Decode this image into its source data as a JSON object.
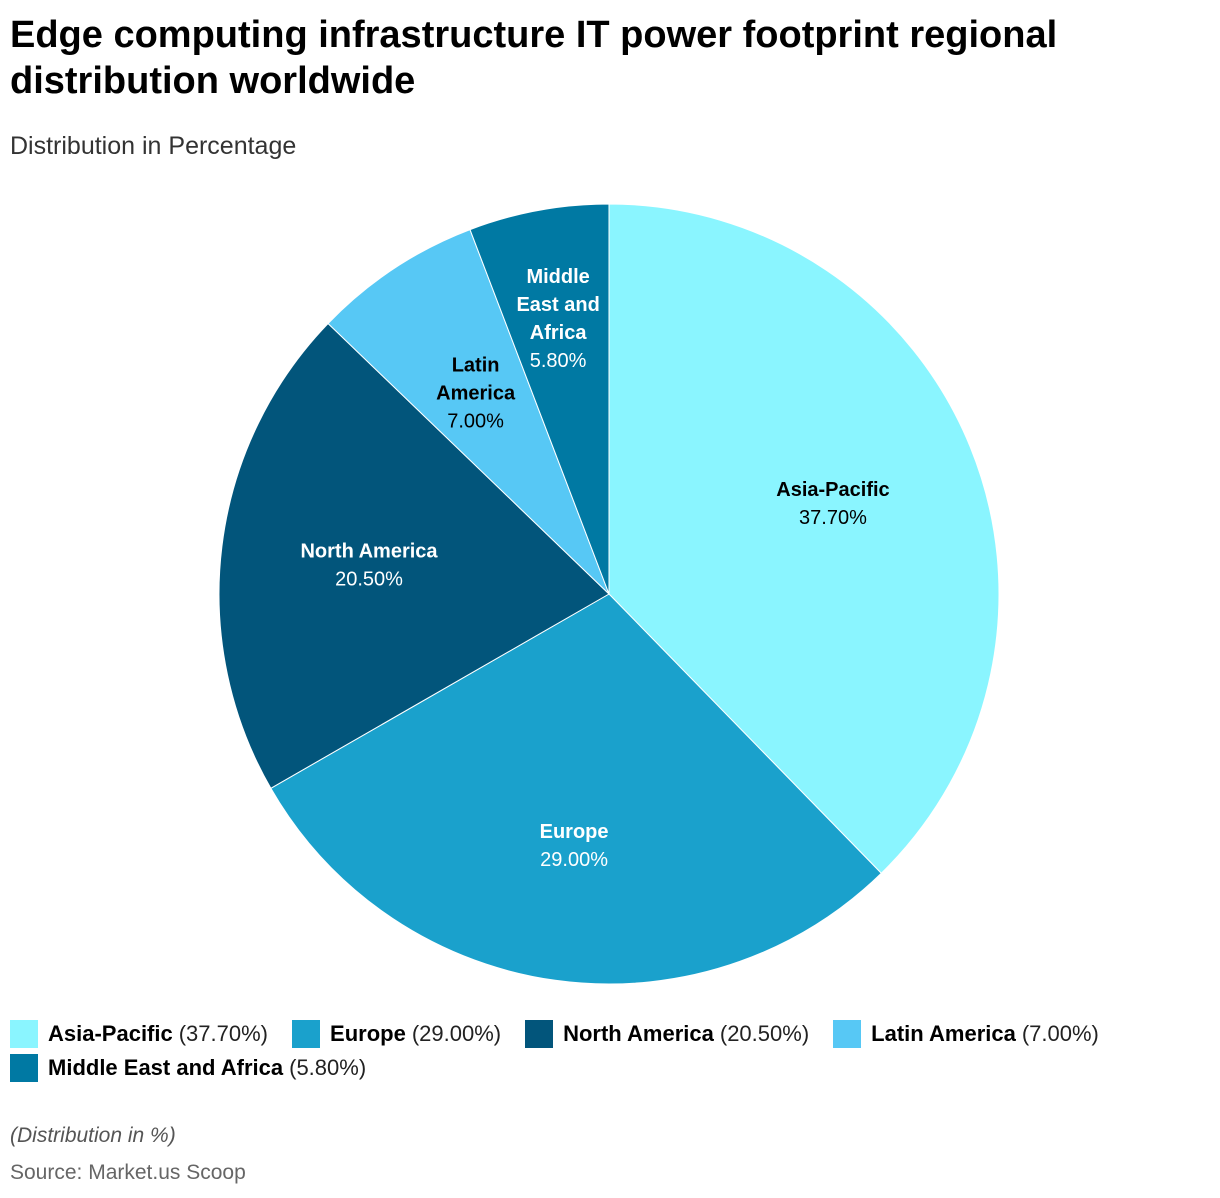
{
  "header": {
    "title": "Edge computing infrastructure IT power footprint regional distribution worldwide",
    "subtitle": "Distribution in Percentage"
  },
  "chart_data": {
    "type": "pie",
    "title": "Edge computing infrastructure IT power footprint regional distribution worldwide",
    "subtitle": "Distribution in Percentage",
    "categories": [
      "Asia-Pacific",
      "Europe",
      "North America",
      "Latin America",
      "Middle East and Africa"
    ],
    "values": [
      37.7,
      29.0,
      20.5,
      7.0,
      5.8
    ],
    "value_labels": [
      "37.70%",
      "29.00%",
      "20.50%",
      "7.00%",
      "5.80%"
    ],
    "colors": [
      "#8af5ff",
      "#1aa1cc",
      "#02557b",
      "#57c8f5",
      "#0079a3"
    ],
    "label_colors": [
      "#000000",
      "#ffffff",
      "#ffffff",
      "#000000",
      "#ffffff"
    ],
    "slice_name_lines": [
      [
        "Asia-Pacific"
      ],
      [
        "Europe"
      ],
      [
        "North America"
      ],
      [
        "Latin",
        "America"
      ],
      [
        "Middle",
        "East and",
        "Africa"
      ]
    ],
    "legend_position": "bottom",
    "start": "12 o'clock, clockwise"
  },
  "legend": {
    "items": [
      {
        "name": "Asia-Pacific",
        "value": "(37.70%)",
        "color": "#8af5ff"
      },
      {
        "name": "Europe",
        "value": "(29.00%)",
        "color": "#1aa1cc"
      },
      {
        "name": "North America",
        "value": "(20.50%)",
        "color": "#02557b"
      },
      {
        "name": "Latin America",
        "value": "(7.00%)",
        "color": "#57c8f5"
      },
      {
        "name": "Middle East and Africa",
        "value": "(5.80%)",
        "color": "#0079a3"
      }
    ]
  },
  "footer": {
    "note": "(Distribution in %)",
    "source": "Source: Market.us Scoop"
  }
}
